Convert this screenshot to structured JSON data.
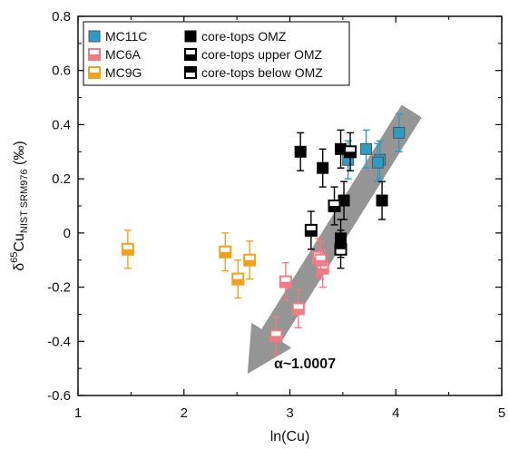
{
  "chart_data": {
    "type": "scatter",
    "xlabel": "ln(Cu)",
    "ylabel": {
      "main": "δ",
      "sup": "65",
      "base": "Cu",
      "sub": "NIST SRM976",
      "unit": " (‰)"
    },
    "xlim": [
      1,
      5
    ],
    "ylim": [
      -0.6,
      0.8
    ],
    "x_ticks": [
      "1",
      "2",
      "3",
      "4",
      "5"
    ],
    "y_ticks": [
      "-0.6",
      "-0.4",
      "-0.2",
      "0",
      "0.2",
      "0.4",
      "0.6",
      "0.8"
    ],
    "grid": false,
    "legend_placement": "top-left",
    "annotation": "α~1.0007",
    "arrow": {
      "from": [
        4.15,
        0.45
      ],
      "to": [
        2.6,
        -0.52
      ],
      "color": "#8c8c8c"
    },
    "series": [
      {
        "name": "MC11C",
        "color": "#2b9cc4",
        "fill": "solid",
        "points": [
          {
            "x": 3.55,
            "y": 0.27,
            "err": 0.07
          },
          {
            "x": 3.72,
            "y": 0.31,
            "err": 0.07
          },
          {
            "x": 3.85,
            "y": 0.27,
            "err": 0.07
          },
          {
            "x": 3.83,
            "y": 0.26,
            "err": 0.07
          },
          {
            "x": 4.03,
            "y": 0.37,
            "err": 0.07
          }
        ]
      },
      {
        "name": "MC6A",
        "color": "#f07b84",
        "fill": "half-bottom",
        "points": [
          {
            "x": 2.87,
            "y": -0.38,
            "err": 0.07
          },
          {
            "x": 2.96,
            "y": -0.18,
            "err": 0.07
          },
          {
            "x": 3.08,
            "y": -0.28,
            "err": 0.07
          },
          {
            "x": 3.27,
            "y": -0.09,
            "err": 0.07
          },
          {
            "x": 3.31,
            "y": -0.13,
            "err": 0.07
          },
          {
            "x": 3.29,
            "y": -0.1,
            "err": 0.07
          }
        ]
      },
      {
        "name": "MC9G",
        "color": "#f0a21c",
        "fill": "half-bottom",
        "points": [
          {
            "x": 1.47,
            "y": -0.06,
            "err": 0.07
          },
          {
            "x": 2.39,
            "y": -0.07,
            "err": 0.07
          },
          {
            "x": 2.51,
            "y": -0.17,
            "err": 0.07
          },
          {
            "x": 2.62,
            "y": -0.1,
            "err": 0.07
          }
        ]
      },
      {
        "name": "core-tops OMZ",
        "color": "#000000",
        "fill": "solid",
        "points": [
          {
            "x": 3.1,
            "y": 0.3,
            "err": 0.07
          },
          {
            "x": 3.31,
            "y": 0.24,
            "err": 0.07
          },
          {
            "x": 3.48,
            "y": 0.31,
            "err": 0.07
          },
          {
            "x": 3.51,
            "y": 0.12,
            "err": 0.07
          },
          {
            "x": 3.48,
            "y": -0.02,
            "err": 0.07
          },
          {
            "x": 3.87,
            "y": 0.12,
            "err": 0.07
          }
        ]
      },
      {
        "name": "core-tops upper OMZ",
        "color": "#000000",
        "fill": "half-bottom",
        "points": [
          {
            "x": 3.2,
            "y": 0.01,
            "err": 0.07
          },
          {
            "x": 3.42,
            "y": 0.1,
            "err": 0.07
          },
          {
            "x": 3.57,
            "y": 0.3,
            "err": 0.07
          }
        ]
      },
      {
        "name": "core-tops below OMZ",
        "color": "#000000",
        "fill": "half-top",
        "points": [
          {
            "x": 3.48,
            "y": -0.06,
            "err": 0.07
          }
        ]
      }
    ]
  }
}
